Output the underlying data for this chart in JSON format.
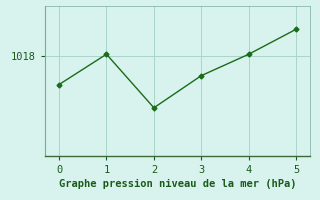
{
  "x": [
    0,
    1,
    2,
    3,
    4,
    5
  ],
  "y": [
    1017.2,
    1018.05,
    1016.55,
    1017.45,
    1018.05,
    1018.75
  ],
  "line_color": "#1a6b1a",
  "marker_color": "#1a6b1a",
  "bg_color": "#d8f3ee",
  "grid_color": "#aad4ca",
  "xlabel": "Graphe pression niveau de la mer (hPa)",
  "xlabel_color": "#1a5a1a",
  "tick_color": "#1a5a1a",
  "spine_color": "#5a8a7a",
  "ytick_label": "1018",
  "ylim": [
    1015.2,
    1019.4
  ],
  "xlim": [
    -0.3,
    5.3
  ],
  "yticks": [
    1018
  ],
  "xticks": [
    0,
    1,
    2,
    3,
    4,
    5
  ],
  "axis_fontsize": 7.5,
  "tick_fontsize": 7.5
}
